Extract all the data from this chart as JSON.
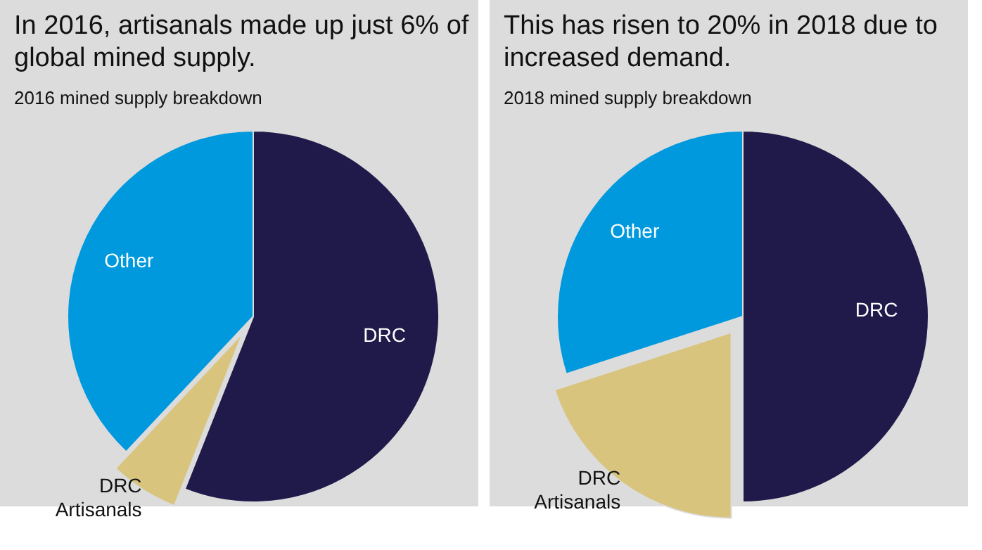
{
  "chart_data": [
    {
      "type": "pie",
      "title": "In 2016, artisanals made up just 6% of global mined supply.",
      "subtitle": "2016 mined supply breakdown",
      "categories": [
        "DRC",
        "DRC Artisanals",
        "Other"
      ],
      "values": [
        56,
        6,
        38
      ],
      "colors": [
        "#1f1a4a",
        "#d9c47e",
        "#0099dd"
      ]
    },
    {
      "type": "pie",
      "title": "This has risen to 20% in 2018 due to increased demand.",
      "subtitle": "2018 mined supply breakdown",
      "categories": [
        "DRC",
        "DRC Artisanals",
        "Other"
      ],
      "values": [
        50,
        20,
        30
      ],
      "colors": [
        "#1f1a4a",
        "#d9c47e",
        "#0099dd"
      ]
    }
  ]
}
